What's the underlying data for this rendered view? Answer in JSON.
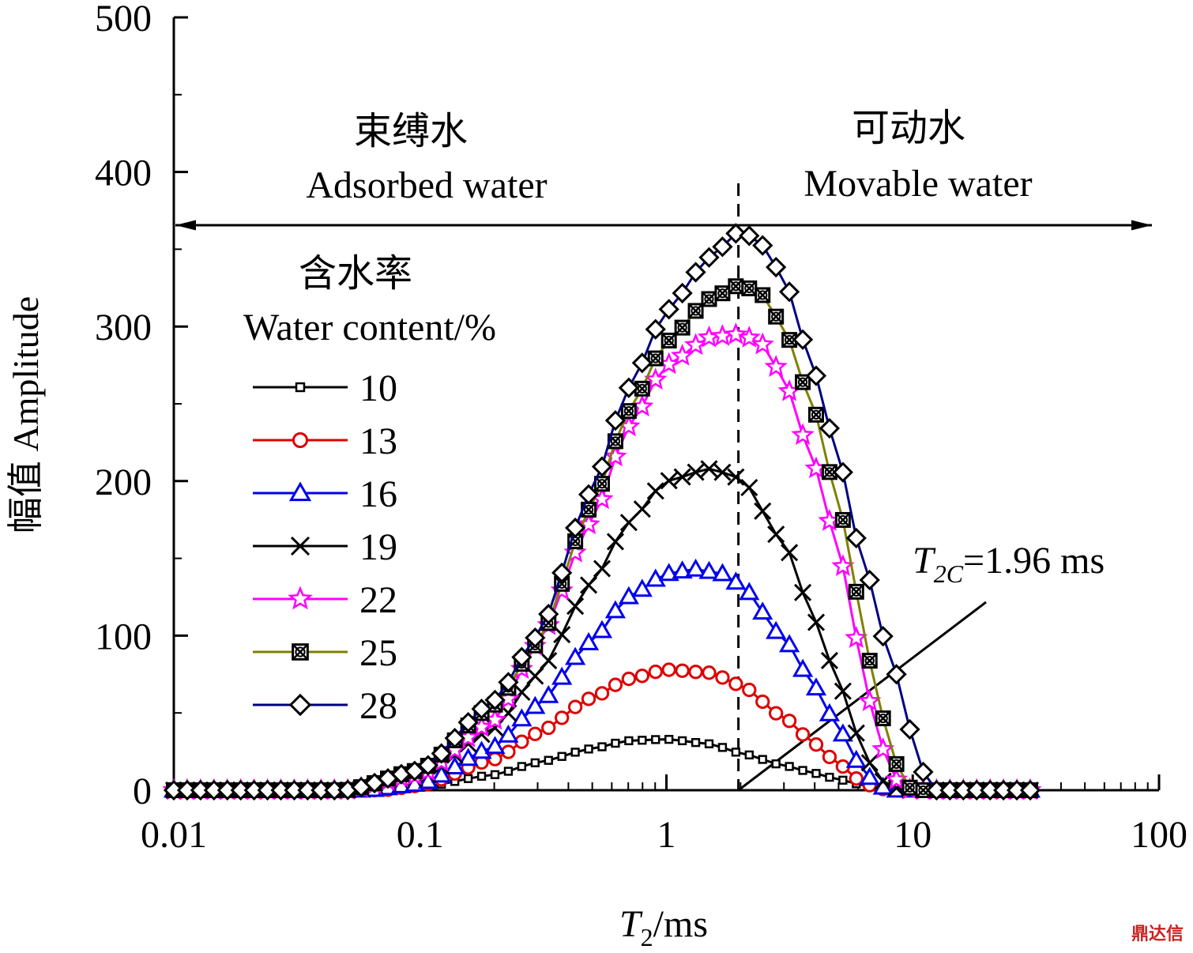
{
  "chart_data": {
    "type": "line",
    "xlabel": "T2/ms",
    "xlabel_main": "T",
    "xlabel_sub": "2",
    "xlabel_unit": "/ms",
    "ylabel": "幅值 Amplitude",
    "xscale": "log",
    "xlim": [
      0.01,
      100
    ],
    "ylim": [
      0,
      500
    ],
    "x_ticks": [
      "0.01",
      "0.1",
      "1",
      "10",
      "100"
    ],
    "y_ticks": [
      "0",
      "100",
      "200",
      "300",
      "400",
      "500"
    ],
    "grid": false,
    "legend": {
      "title_cn": "含水率",
      "title_en": "Water content/%",
      "placement": "left"
    },
    "annotations": {
      "left_region_cn": "束缚水",
      "left_region_en": "Adsorbed water",
      "right_region_cn": "可动水",
      "right_region_en": "Movable water",
      "cutoff_label_main": "T",
      "cutoff_label_sub": "2C",
      "cutoff_label_value": "=1.96 ms",
      "cutoff_x": 1.96
    },
    "series": [
      {
        "name": "10",
        "marker": "square",
        "color": "#000000",
        "x": [
          0.01,
          0.05,
          0.1,
          0.2,
          0.3,
          0.5,
          0.7,
          1.0,
          1.5,
          2.0,
          3.0,
          4.0,
          5.0,
          6.0,
          7.0,
          8.0,
          10,
          30
        ],
        "values": [
          0,
          0,
          2,
          10,
          18,
          27,
          32,
          33,
          30,
          24,
          16,
          11,
          7,
          4,
          2,
          0,
          0,
          0
        ]
      },
      {
        "name": "13",
        "marker": "circle",
        "color": "#dd0000",
        "x": [
          0.01,
          0.07,
          0.1,
          0.2,
          0.3,
          0.5,
          0.7,
          1.0,
          1.5,
          2.0,
          3.0,
          4.0,
          5.0,
          6.0,
          7.0,
          8.0,
          10,
          30
        ],
        "values": [
          0,
          0,
          3,
          20,
          37,
          60,
          72,
          78,
          76,
          68,
          47,
          30,
          17,
          7,
          2,
          0,
          0,
          0
        ]
      },
      {
        "name": "16",
        "marker": "triangle",
        "color": "#0000ee",
        "x": [
          0.01,
          0.06,
          0.1,
          0.2,
          0.3,
          0.5,
          0.7,
          1.0,
          1.3,
          1.7,
          2.0,
          3.0,
          4.0,
          5.0,
          6.0,
          7.0,
          8.0,
          10,
          30
        ],
        "values": [
          0,
          0,
          4,
          28,
          55,
          97,
          125,
          140,
          143,
          140,
          133,
          98,
          67,
          40,
          18,
          5,
          0,
          0,
          0
        ]
      },
      {
        "name": "19",
        "marker": "x",
        "color": "#000000",
        "x": [
          0.01,
          0.05,
          0.1,
          0.2,
          0.3,
          0.5,
          0.7,
          1.0,
          1.5,
          2.0,
          3.0,
          4.0,
          5.0,
          6.0,
          7.0,
          8.0,
          10,
          30
        ],
        "values": [
          0,
          0,
          8,
          40,
          75,
          135,
          173,
          200,
          208,
          202,
          160,
          110,
          70,
          35,
          12,
          2,
          0,
          0
        ]
      },
      {
        "name": "22",
        "marker": "star",
        "color": "#ff00ff",
        "x": [
          0.01,
          0.05,
          0.1,
          0.2,
          0.3,
          0.5,
          0.7,
          1.0,
          1.5,
          2.0,
          2.5,
          3.0,
          4.0,
          5.0,
          6.0,
          7.0,
          8.0,
          9.0,
          10,
          30
        ],
        "values": [
          0,
          0,
          10,
          45,
          95,
          175,
          235,
          275,
          293,
          295,
          288,
          265,
          210,
          155,
          95,
          45,
          15,
          2,
          0,
          0
        ]
      },
      {
        "name": "25",
        "marker": "square-x",
        "color": "#808000",
        "x": [
          0.01,
          0.05,
          0.1,
          0.2,
          0.3,
          0.5,
          0.7,
          1.0,
          1.5,
          2.0,
          2.5,
          3.0,
          4.0,
          5.0,
          6.0,
          7.0,
          8.0,
          9.0,
          10,
          30
        ],
        "values": [
          0,
          0,
          13,
          55,
          95,
          185,
          245,
          290,
          318,
          327,
          320,
          298,
          245,
          185,
          125,
          70,
          32,
          8,
          0,
          0
        ]
      },
      {
        "name": "28",
        "marker": "diamond",
        "color": "#000080",
        "x": [
          0.01,
          0.05,
          0.1,
          0.2,
          0.3,
          0.5,
          0.7,
          1.0,
          1.5,
          2.0,
          2.5,
          3.0,
          4.0,
          5.0,
          6.0,
          8.0,
          10,
          11,
          12,
          30
        ],
        "values": [
          0,
          0,
          13,
          58,
          100,
          195,
          260,
          310,
          345,
          362,
          352,
          330,
          270,
          215,
          160,
          90,
          35,
          12,
          0,
          0
        ]
      }
    ]
  }
}
